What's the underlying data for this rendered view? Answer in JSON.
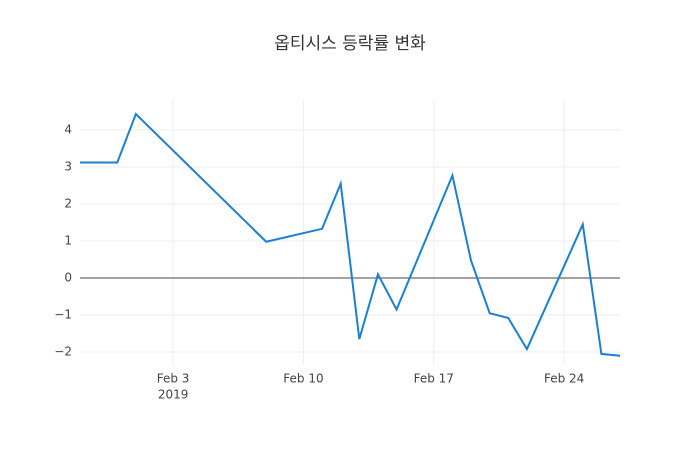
{
  "chart_data": {
    "type": "line",
    "title": "옵티시스 등락률 변화",
    "x": [
      "2019-01-29",
      "2019-01-31",
      "2019-02-01",
      "2019-02-08",
      "2019-02-11",
      "2019-02-12",
      "2019-02-13",
      "2019-02-14",
      "2019-02-15",
      "2019-02-18",
      "2019-02-19",
      "2019-02-20",
      "2019-02-21",
      "2019-02-22",
      "2019-02-25",
      "2019-02-26",
      "2019-02-27"
    ],
    "series": [
      {
        "color": "#1c7fd6",
        "values": [
          3.12,
          3.12,
          4.43,
          0.98,
          1.33,
          2.55,
          -1.65,
          0.1,
          -0.85,
          2.77,
          0.47,
          -0.95,
          -1.08,
          -1.92,
          1.45,
          -2.05,
          -2.1
        ]
      }
    ],
    "xlim": [
      "2019-01-29",
      "2019-02-27"
    ],
    "xticks": [
      {
        "value": "2019-02-03",
        "label": "Feb 3"
      },
      {
        "value": "2019-02-10",
        "label": "Feb 10"
      },
      {
        "value": "2019-02-17",
        "label": "Feb 17"
      },
      {
        "value": "2019-02-24",
        "label": "Feb 24"
      }
    ],
    "x_year_label": "2019",
    "ylim": [
      -2.35,
      4.81
    ],
    "yticks": [
      {
        "value": -2,
        "label": "−2"
      },
      {
        "value": -1,
        "label": "−1"
      },
      0,
      1,
      2,
      3,
      4
    ],
    "grid": true,
    "zeroline": true
  }
}
